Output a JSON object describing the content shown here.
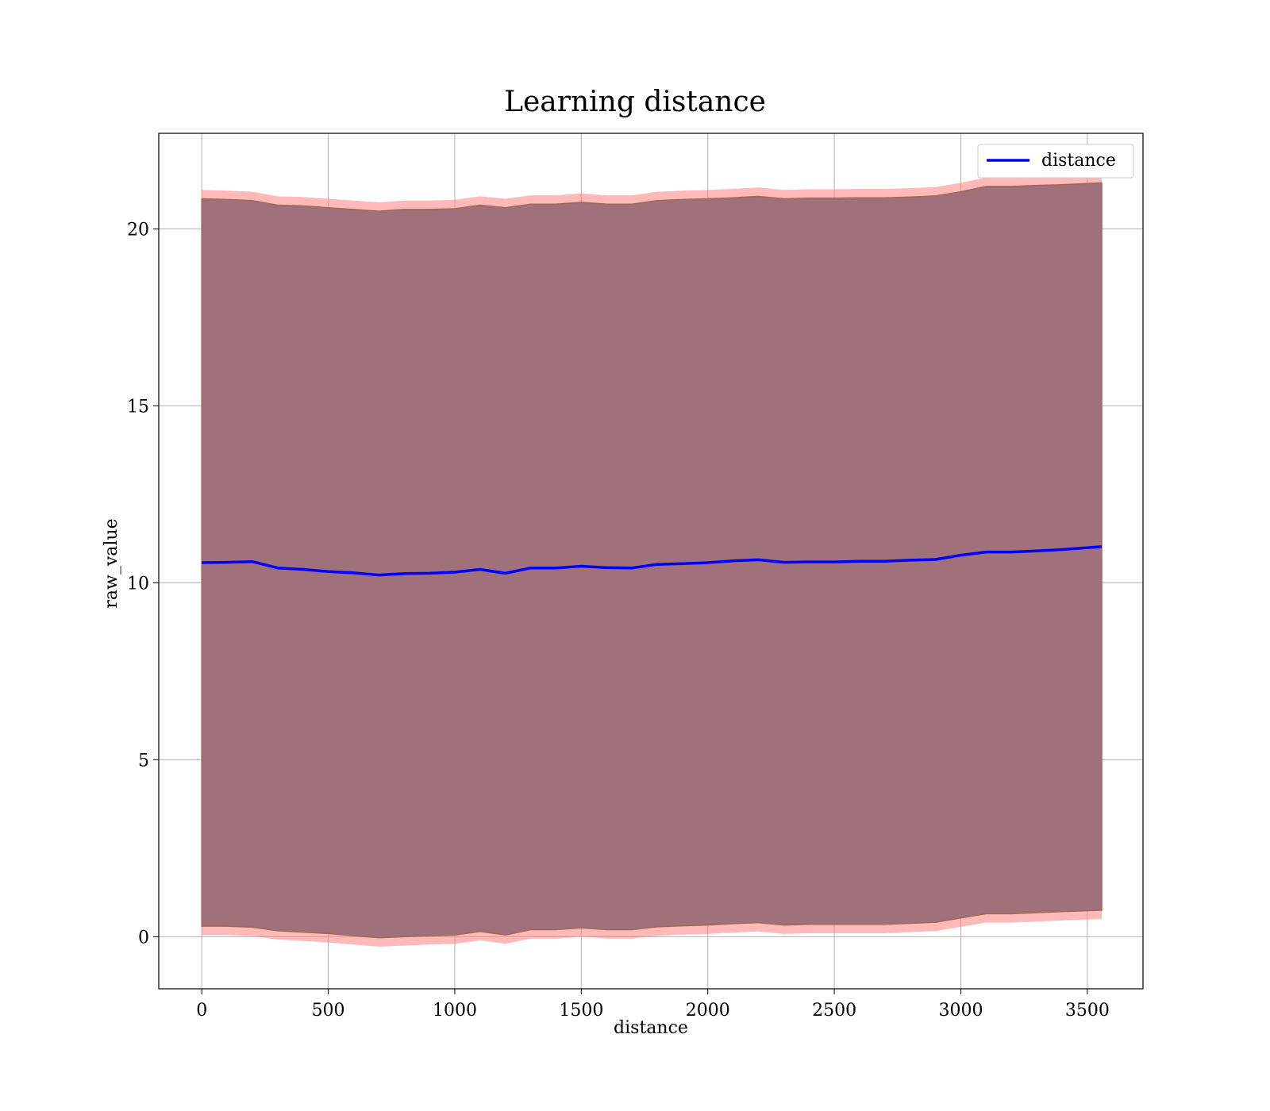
{
  "chart_data": {
    "type": "line",
    "title": "Learning distance",
    "xlabel": "distance",
    "ylabel": "raw_value",
    "xlim": [
      -170,
      3720
    ],
    "ylim": [
      -1.47,
      22.7
    ],
    "xticks": [
      0,
      500,
      1000,
      1500,
      2000,
      2500,
      3000,
      3500
    ],
    "yticks": [
      0,
      5,
      10,
      15,
      20
    ],
    "grid": true,
    "legend": {
      "location": "top-right",
      "entries": [
        "distance"
      ]
    },
    "colors": {
      "line": "#0000ff",
      "outer_band": "#ff8080",
      "inner_band": "#a0717a",
      "edge": "#a06a55"
    },
    "x": [
      0,
      100,
      200,
      300,
      400,
      500,
      600,
      700,
      800,
      900,
      1000,
      1100,
      1200,
      1300,
      1400,
      1500,
      1600,
      1700,
      1800,
      1900,
      2000,
      2100,
      2200,
      2300,
      2400,
      2500,
      2600,
      2700,
      2800,
      2900,
      3000,
      3100,
      3200,
      3300,
      3400,
      3557
    ],
    "series": [
      {
        "name": "distance",
        "values": [
          10.57,
          10.58,
          10.6,
          10.42,
          10.38,
          10.32,
          10.28,
          10.22,
          10.26,
          10.27,
          10.3,
          10.38,
          10.27,
          10.42,
          10.42,
          10.47,
          10.43,
          10.42,
          10.52,
          10.54,
          10.57,
          10.62,
          10.65,
          10.58,
          10.59,
          10.59,
          10.61,
          10.61,
          10.64,
          10.66,
          10.78,
          10.87,
          10.87,
          10.9,
          10.94,
          11.02
        ]
      }
    ],
    "band_outer": {
      "upper": [
        21.1,
        21.08,
        21.05,
        20.92,
        20.9,
        20.85,
        20.8,
        20.75,
        20.8,
        20.8,
        20.82,
        20.92,
        20.85,
        20.95,
        20.95,
        21.0,
        20.95,
        20.95,
        21.05,
        21.08,
        21.1,
        21.13,
        21.17,
        21.1,
        21.12,
        21.12,
        21.13,
        21.13,
        21.15,
        21.18,
        21.3,
        21.45,
        21.45,
        21.48,
        21.5,
        21.55
      ],
      "lower": [
        0.05,
        0.05,
        0.02,
        -0.08,
        -0.12,
        -0.16,
        -0.22,
        -0.28,
        -0.25,
        -0.22,
        -0.2,
        -0.1,
        -0.2,
        -0.05,
        -0.05,
        0.0,
        -0.05,
        -0.05,
        0.03,
        0.06,
        0.08,
        0.12,
        0.15,
        0.08,
        0.1,
        0.1,
        0.1,
        0.1,
        0.13,
        0.16,
        0.28,
        0.4,
        0.4,
        0.43,
        0.46,
        0.5
      ]
    },
    "band_inner": {
      "upper": [
        20.85,
        20.83,
        20.8,
        20.67,
        20.65,
        20.6,
        20.55,
        20.5,
        20.55,
        20.55,
        20.57,
        20.67,
        20.6,
        20.7,
        20.7,
        20.75,
        20.7,
        20.7,
        20.8,
        20.83,
        20.85,
        20.88,
        20.92,
        20.85,
        20.87,
        20.87,
        20.88,
        20.88,
        20.9,
        20.93,
        21.05,
        21.2,
        21.2,
        21.23,
        21.25,
        21.3
      ],
      "lower": [
        0.3,
        0.3,
        0.27,
        0.17,
        0.13,
        0.09,
        0.03,
        -0.03,
        0.0,
        0.03,
        0.05,
        0.15,
        0.05,
        0.2,
        0.2,
        0.25,
        0.2,
        0.2,
        0.28,
        0.31,
        0.33,
        0.37,
        0.4,
        0.33,
        0.35,
        0.35,
        0.35,
        0.35,
        0.38,
        0.41,
        0.53,
        0.65,
        0.65,
        0.68,
        0.71,
        0.75
      ]
    }
  }
}
